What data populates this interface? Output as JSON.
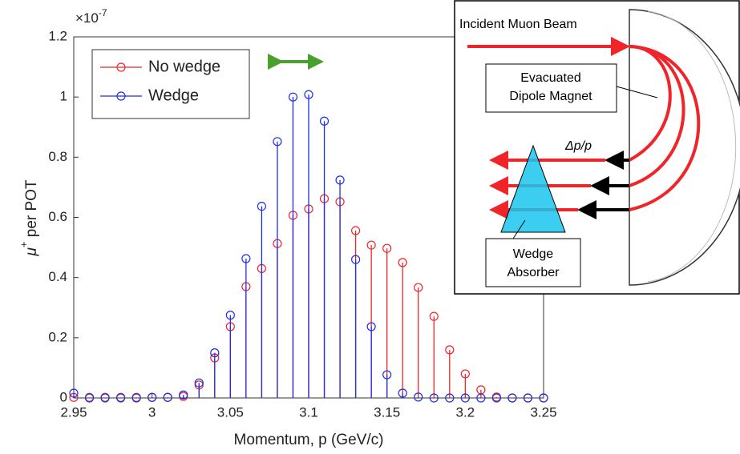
{
  "chart_data": {
    "type": "stem",
    "x_label": "Momentum, p (GeV/c)",
    "y_label": {
      "symbol": "μ",
      "superscript": "+",
      "text": " per POT"
    },
    "y_scale_label": {
      "base": "×10",
      "exponent": "-7"
    },
    "x": [
      2.95,
      2.96,
      2.97,
      2.98,
      2.99,
      3.0,
      3.01,
      3.02,
      3.03,
      3.04,
      3.05,
      3.06,
      3.07,
      3.08,
      3.09,
      3.1,
      3.11,
      3.12,
      3.13,
      3.14,
      3.15,
      3.16,
      3.17,
      3.18,
      3.19,
      3.2,
      3.21,
      3.22,
      3.23,
      3.24,
      3.25
    ],
    "series": [
      {
        "name": "No wedge",
        "color": "#f0252a",
        "values": [
          0.002,
          0.002,
          0.002,
          0.002,
          0.002,
          0.002,
          0.002,
          0.005,
          0.043,
          0.133,
          0.237,
          0.37,
          0.43,
          0.513,
          0.607,
          0.628,
          0.662,
          0.652,
          0.556,
          0.508,
          0.497,
          0.45,
          0.367,
          0.271,
          0.16,
          0.08,
          0.027,
          0.003,
          0,
          0,
          0
        ]
      },
      {
        "name": "Wedge",
        "color": "#1f2ee8",
        "values": [
          0.016,
          0,
          0,
          0,
          0,
          0.002,
          0.002,
          0.01,
          0.05,
          0.15,
          0.275,
          0.463,
          0.637,
          0.852,
          1.0,
          1.008,
          0.92,
          0.724,
          0.46,
          0.237,
          0.077,
          0.016,
          0.003,
          0,
          0,
          0,
          0,
          0,
          0,
          0,
          0
        ]
      }
    ],
    "xlim": [
      2.95,
      3.25
    ],
    "xticks": [
      2.95,
      3,
      3.05,
      3.1,
      3.15,
      3.2,
      3.25
    ],
    "ylim": [
      0,
      1.2
    ],
    "yticks": [
      0,
      0.2,
      0.4,
      0.6,
      0.8,
      1,
      1.2
    ],
    "legend": "upper-left"
  },
  "inset": {
    "beam_label": "Incident Muon Beam",
    "magnet_label": [
      "Evacuated",
      "Dipole Magnet"
    ],
    "delta_label": "Δp/p",
    "wedge_label": [
      "Wedge",
      "Absorber"
    ]
  }
}
